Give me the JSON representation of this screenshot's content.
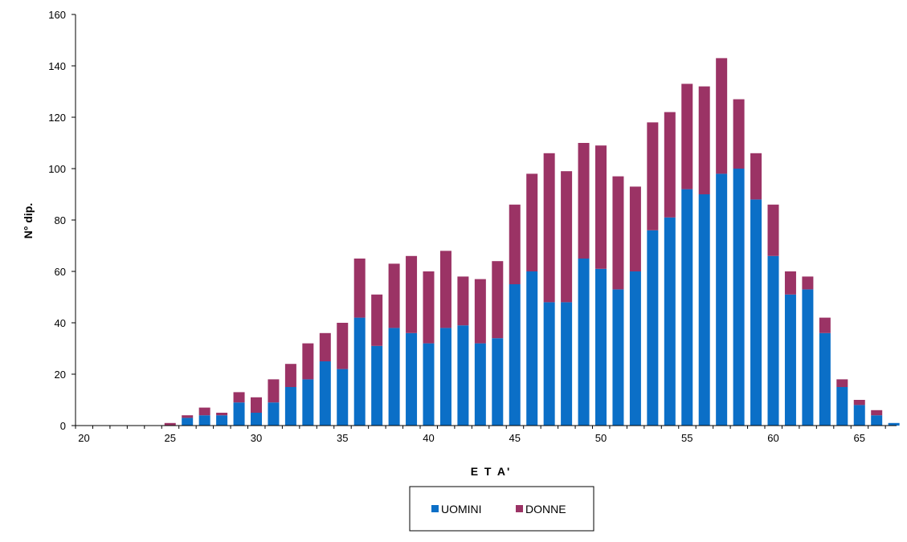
{
  "chart_data": {
    "type": "bar",
    "stacked": true,
    "title": "",
    "xlabel": "E T A'",
    "ylabel": "N° dip.",
    "xlim": [
      20,
      67
    ],
    "ylim": [
      0,
      160
    ],
    "x_ticks": [
      20,
      25,
      30,
      35,
      40,
      45,
      50,
      55,
      60,
      65
    ],
    "y_ticks": [
      0,
      20,
      40,
      60,
      80,
      100,
      120,
      140,
      160
    ],
    "grid": false,
    "legend_position": "bottom",
    "x": [
      20,
      21,
      22,
      23,
      24,
      25,
      26,
      27,
      28,
      29,
      30,
      31,
      32,
      33,
      34,
      35,
      36,
      37,
      38,
      39,
      40,
      41,
      42,
      43,
      44,
      45,
      46,
      47,
      48,
      49,
      50,
      51,
      52,
      53,
      54,
      55,
      56,
      57,
      58,
      59,
      60,
      61,
      62,
      63,
      64,
      65,
      66,
      67
    ],
    "series": [
      {
        "name": "UOMINI",
        "color": "#0b6fc7",
        "values": [
          0,
          0,
          0,
          0,
          0,
          0,
          3,
          4,
          4,
          9,
          5,
          9,
          15,
          18,
          25,
          22,
          42,
          31,
          38,
          36,
          32,
          38,
          39,
          32,
          34,
          55,
          60,
          48,
          48,
          65,
          61,
          53,
          60,
          76,
          81,
          92,
          90,
          98,
          100,
          88,
          66,
          51,
          53,
          36,
          15,
          8,
          4,
          1
        ]
      },
      {
        "name": "DONNE",
        "color": "#9b3365",
        "values": [
          0,
          0,
          0,
          0,
          0,
          1,
          1,
          3,
          1,
          4,
          6,
          9,
          9,
          14,
          11,
          18,
          23,
          20,
          25,
          30,
          28,
          30,
          19,
          25,
          30,
          31,
          38,
          58,
          51,
          45,
          48,
          44,
          33,
          42,
          41,
          41,
          42,
          45,
          27,
          18,
          20,
          9,
          5,
          6,
          3,
          2,
          2,
          0
        ]
      }
    ]
  }
}
